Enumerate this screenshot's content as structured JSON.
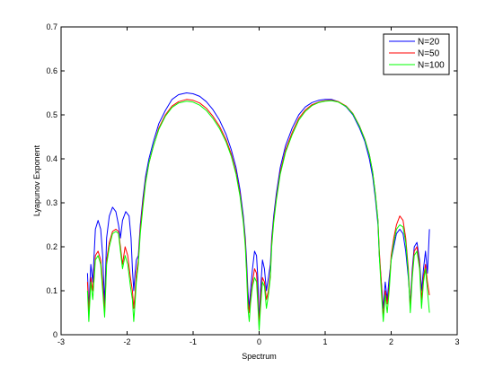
{
  "chart_data": {
    "type": "line",
    "title": "",
    "xlabel": "Spectrum",
    "ylabel": "Lyapunov Exponent",
    "xlim": [
      -3,
      3
    ],
    "ylim": [
      0,
      0.7
    ],
    "xticks": [
      "-3",
      "-2",
      "-1",
      "0",
      "1",
      "2",
      "3"
    ],
    "yticks": [
      "0",
      "0.1",
      "0.2",
      "0.3",
      "0.4",
      "0.5",
      "0.6",
      "0.7"
    ],
    "grid": false,
    "legend_position": "top-right",
    "series": [
      {
        "name": "N=20",
        "color": "#0000ff",
        "points": [
          [
            -2.6,
            0.14
          ],
          [
            -2.58,
            0.06
          ],
          [
            -2.55,
            0.16
          ],
          [
            -2.52,
            0.12
          ],
          [
            -2.48,
            0.24
          ],
          [
            -2.44,
            0.26
          ],
          [
            -2.4,
            0.24
          ],
          [
            -2.37,
            0.18
          ],
          [
            -2.34,
            0.07
          ],
          [
            -2.31,
            0.22
          ],
          [
            -2.27,
            0.27
          ],
          [
            -2.22,
            0.29
          ],
          [
            -2.17,
            0.28
          ],
          [
            -2.13,
            0.25
          ],
          [
            -2.1,
            0.22
          ],
          [
            -2.07,
            0.26
          ],
          [
            -2.02,
            0.28
          ],
          [
            -1.97,
            0.27
          ],
          [
            -1.94,
            0.22
          ],
          [
            -1.92,
            0.15
          ],
          [
            -1.9,
            0.1
          ],
          [
            -1.88,
            0.14
          ],
          [
            -1.86,
            0.17
          ],
          [
            -1.83,
            0.18
          ],
          [
            -1.8,
            0.25
          ],
          [
            -1.76,
            0.31
          ],
          [
            -1.72,
            0.36
          ],
          [
            -1.67,
            0.4
          ],
          [
            -1.6,
            0.44
          ],
          [
            -1.52,
            0.48
          ],
          [
            -1.42,
            0.51
          ],
          [
            -1.32,
            0.535
          ],
          [
            -1.22,
            0.546
          ],
          [
            -1.1,
            0.55
          ],
          [
            -1.0,
            0.548
          ],
          [
            -0.9,
            0.542
          ],
          [
            -0.8,
            0.53
          ],
          [
            -0.7,
            0.512
          ],
          [
            -0.6,
            0.488
          ],
          [
            -0.5,
            0.455
          ],
          [
            -0.42,
            0.42
          ],
          [
            -0.35,
            0.38
          ],
          [
            -0.29,
            0.33
          ],
          [
            -0.24,
            0.27
          ],
          [
            -0.21,
            0.22
          ],
          [
            -0.19,
            0.17
          ],
          [
            -0.17,
            0.1
          ],
          [
            -0.15,
            0.06
          ],
          [
            -0.13,
            0.1
          ],
          [
            -0.1,
            0.15
          ],
          [
            -0.07,
            0.19
          ],
          [
            -0.04,
            0.18
          ],
          [
            -0.02,
            0.13
          ],
          [
            0.0,
            0.03
          ],
          [
            0.02,
            0.1
          ],
          [
            0.05,
            0.17
          ],
          [
            0.08,
            0.15
          ],
          [
            0.11,
            0.1
          ],
          [
            0.14,
            0.13
          ],
          [
            0.17,
            0.16
          ],
          [
            0.19,
            0.22
          ],
          [
            0.22,
            0.27
          ],
          [
            0.26,
            0.32
          ],
          [
            0.32,
            0.38
          ],
          [
            0.4,
            0.43
          ],
          [
            0.5,
            0.47
          ],
          [
            0.6,
            0.5
          ],
          [
            0.7,
            0.518
          ],
          [
            0.8,
            0.528
          ],
          [
            0.9,
            0.533
          ],
          [
            1.0,
            0.535
          ],
          [
            1.1,
            0.535
          ],
          [
            1.2,
            0.53
          ],
          [
            1.32,
            0.518
          ],
          [
            1.42,
            0.5
          ],
          [
            1.52,
            0.47
          ],
          [
            1.6,
            0.44
          ],
          [
            1.67,
            0.4
          ],
          [
            1.72,
            0.36
          ],
          [
            1.76,
            0.31
          ],
          [
            1.8,
            0.25
          ],
          [
            1.82,
            0.18
          ],
          [
            1.85,
            0.12
          ],
          [
            1.88,
            0.06
          ],
          [
            1.91,
            0.12
          ],
          [
            1.94,
            0.08
          ],
          [
            1.97,
            0.13
          ],
          [
            2.0,
            0.17
          ],
          [
            2.04,
            0.2
          ],
          [
            2.08,
            0.23
          ],
          [
            2.13,
            0.24
          ],
          [
            2.18,
            0.23
          ],
          [
            2.22,
            0.19
          ],
          [
            2.26,
            0.13
          ],
          [
            2.29,
            0.07
          ],
          [
            2.32,
            0.15
          ],
          [
            2.35,
            0.2
          ],
          [
            2.39,
            0.21
          ],
          [
            2.43,
            0.17
          ],
          [
            2.46,
            0.1
          ],
          [
            2.49,
            0.15
          ],
          [
            2.52,
            0.19
          ],
          [
            2.55,
            0.14
          ],
          [
            2.58,
            0.24
          ]
        ]
      },
      {
        "name": "N=50",
        "color": "#ff0000",
        "points": [
          [
            -2.6,
            0.12
          ],
          [
            -2.58,
            0.05
          ],
          [
            -2.55,
            0.13
          ],
          [
            -2.52,
            0.1
          ],
          [
            -2.48,
            0.18
          ],
          [
            -2.44,
            0.19
          ],
          [
            -2.4,
            0.17
          ],
          [
            -2.37,
            0.12
          ],
          [
            -2.34,
            0.05
          ],
          [
            -2.31,
            0.17
          ],
          [
            -2.27,
            0.21
          ],
          [
            -2.22,
            0.235
          ],
          [
            -2.17,
            0.24
          ],
          [
            -2.13,
            0.235
          ],
          [
            -2.1,
            0.2
          ],
          [
            -2.07,
            0.16
          ],
          [
            -2.03,
            0.2
          ],
          [
            -1.99,
            0.18
          ],
          [
            -1.95,
            0.13
          ],
          [
            -1.92,
            0.1
          ],
          [
            -1.9,
            0.06
          ],
          [
            -1.88,
            0.09
          ],
          [
            -1.86,
            0.14
          ],
          [
            -1.83,
            0.17
          ],
          [
            -1.8,
            0.24
          ],
          [
            -1.76,
            0.3
          ],
          [
            -1.72,
            0.35
          ],
          [
            -1.67,
            0.39
          ],
          [
            -1.6,
            0.43
          ],
          [
            -1.52,
            0.47
          ],
          [
            -1.42,
            0.5
          ],
          [
            -1.32,
            0.52
          ],
          [
            -1.22,
            0.53
          ],
          [
            -1.1,
            0.535
          ],
          [
            -1.0,
            0.533
          ],
          [
            -0.9,
            0.527
          ],
          [
            -0.8,
            0.515
          ],
          [
            -0.7,
            0.497
          ],
          [
            -0.6,
            0.474
          ],
          [
            -0.5,
            0.443
          ],
          [
            -0.42,
            0.41
          ],
          [
            -0.35,
            0.37
          ],
          [
            -0.29,
            0.32
          ],
          [
            -0.24,
            0.26
          ],
          [
            -0.21,
            0.21
          ],
          [
            -0.19,
            0.15
          ],
          [
            -0.17,
            0.08
          ],
          [
            -0.15,
            0.05
          ],
          [
            -0.13,
            0.08
          ],
          [
            -0.1,
            0.12
          ],
          [
            -0.07,
            0.15
          ],
          [
            -0.04,
            0.14
          ],
          [
            -0.02,
            0.09
          ],
          [
            0.0,
            0.02
          ],
          [
            0.02,
            0.08
          ],
          [
            0.05,
            0.13
          ],
          [
            0.08,
            0.12
          ],
          [
            0.11,
            0.08
          ],
          [
            0.14,
            0.1
          ],
          [
            0.17,
            0.14
          ],
          [
            0.19,
            0.21
          ],
          [
            0.22,
            0.26
          ],
          [
            0.26,
            0.31
          ],
          [
            0.32,
            0.37
          ],
          [
            0.4,
            0.42
          ],
          [
            0.5,
            0.46
          ],
          [
            0.6,
            0.492
          ],
          [
            0.7,
            0.511
          ],
          [
            0.8,
            0.523
          ],
          [
            0.9,
            0.529
          ],
          [
            1.0,
            0.532
          ],
          [
            1.1,
            0.533
          ],
          [
            1.2,
            0.53
          ],
          [
            1.32,
            0.52
          ],
          [
            1.42,
            0.503
          ],
          [
            1.52,
            0.475
          ],
          [
            1.6,
            0.445
          ],
          [
            1.67,
            0.41
          ],
          [
            1.72,
            0.37
          ],
          [
            1.76,
            0.32
          ],
          [
            1.8,
            0.26
          ],
          [
            1.82,
            0.19
          ],
          [
            1.85,
            0.12
          ],
          [
            1.88,
            0.04
          ],
          [
            1.91,
            0.1
          ],
          [
            1.94,
            0.07
          ],
          [
            1.97,
            0.11
          ],
          [
            2.0,
            0.18
          ],
          [
            2.04,
            0.22
          ],
          [
            2.08,
            0.25
          ],
          [
            2.13,
            0.27
          ],
          [
            2.18,
            0.26
          ],
          [
            2.22,
            0.22
          ],
          [
            2.26,
            0.15
          ],
          [
            2.29,
            0.06
          ],
          [
            2.32,
            0.14
          ],
          [
            2.35,
            0.19
          ],
          [
            2.39,
            0.2
          ],
          [
            2.43,
            0.16
          ],
          [
            2.46,
            0.08
          ],
          [
            2.49,
            0.13
          ],
          [
            2.52,
            0.16
          ],
          [
            2.55,
            0.12
          ],
          [
            2.58,
            0.09
          ]
        ]
      },
      {
        "name": "N=100",
        "color": "#00ff00",
        "points": [
          [
            -2.6,
            0.1
          ],
          [
            -2.58,
            0.03
          ],
          [
            -2.55,
            0.12
          ],
          [
            -2.52,
            0.08
          ],
          [
            -2.48,
            0.17
          ],
          [
            -2.44,
            0.18
          ],
          [
            -2.4,
            0.16
          ],
          [
            -2.37,
            0.1
          ],
          [
            -2.34,
            0.04
          ],
          [
            -2.31,
            0.16
          ],
          [
            -2.27,
            0.2
          ],
          [
            -2.22,
            0.23
          ],
          [
            -2.17,
            0.235
          ],
          [
            -2.13,
            0.23
          ],
          [
            -2.1,
            0.19
          ],
          [
            -2.07,
            0.15
          ],
          [
            -2.03,
            0.18
          ],
          [
            -1.99,
            0.16
          ],
          [
            -1.95,
            0.11
          ],
          [
            -1.92,
            0.08
          ],
          [
            -1.9,
            0.03
          ],
          [
            -1.88,
            0.07
          ],
          [
            -1.86,
            0.12
          ],
          [
            -1.83,
            0.16
          ],
          [
            -1.8,
            0.23
          ],
          [
            -1.76,
            0.29
          ],
          [
            -1.72,
            0.345
          ],
          [
            -1.67,
            0.39
          ],
          [
            -1.6,
            0.43
          ],
          [
            -1.52,
            0.467
          ],
          [
            -1.42,
            0.497
          ],
          [
            -1.32,
            0.517
          ],
          [
            -1.22,
            0.527
          ],
          [
            -1.1,
            0.531
          ],
          [
            -1.0,
            0.529
          ],
          [
            -0.9,
            0.522
          ],
          [
            -0.8,
            0.51
          ],
          [
            -0.7,
            0.492
          ],
          [
            -0.6,
            0.469
          ],
          [
            -0.5,
            0.438
          ],
          [
            -0.42,
            0.405
          ],
          [
            -0.35,
            0.365
          ],
          [
            -0.29,
            0.315
          ],
          [
            -0.24,
            0.255
          ],
          [
            -0.21,
            0.2
          ],
          [
            -0.19,
            0.14
          ],
          [
            -0.17,
            0.06
          ],
          [
            -0.15,
            0.03
          ],
          [
            -0.13,
            0.07
          ],
          [
            -0.1,
            0.11
          ],
          [
            -0.07,
            0.13
          ],
          [
            -0.04,
            0.12
          ],
          [
            -0.02,
            0.07
          ],
          [
            0.0,
            0.01
          ],
          [
            0.02,
            0.06
          ],
          [
            0.05,
            0.12
          ],
          [
            0.08,
            0.11
          ],
          [
            0.11,
            0.06
          ],
          [
            0.14,
            0.09
          ],
          [
            0.17,
            0.13
          ],
          [
            0.19,
            0.2
          ],
          [
            0.22,
            0.255
          ],
          [
            0.26,
            0.305
          ],
          [
            0.32,
            0.365
          ],
          [
            0.4,
            0.415
          ],
          [
            0.5,
            0.455
          ],
          [
            0.6,
            0.488
          ],
          [
            0.7,
            0.508
          ],
          [
            0.8,
            0.521
          ],
          [
            0.9,
            0.528
          ],
          [
            1.0,
            0.531
          ],
          [
            1.1,
            0.532
          ],
          [
            1.2,
            0.529
          ],
          [
            1.32,
            0.519
          ],
          [
            1.42,
            0.502
          ],
          [
            1.52,
            0.474
          ],
          [
            1.6,
            0.444
          ],
          [
            1.67,
            0.41
          ],
          [
            1.72,
            0.37
          ],
          [
            1.76,
            0.32
          ],
          [
            1.8,
            0.26
          ],
          [
            1.82,
            0.18
          ],
          [
            1.85,
            0.1
          ],
          [
            1.88,
            0.03
          ],
          [
            1.91,
            0.09
          ],
          [
            1.94,
            0.05
          ],
          [
            1.97,
            0.1
          ],
          [
            2.0,
            0.17
          ],
          [
            2.04,
            0.21
          ],
          [
            2.08,
            0.24
          ],
          [
            2.13,
            0.25
          ],
          [
            2.18,
            0.245
          ],
          [
            2.22,
            0.21
          ],
          [
            2.26,
            0.14
          ],
          [
            2.29,
            0.05
          ],
          [
            2.32,
            0.13
          ],
          [
            2.35,
            0.18
          ],
          [
            2.39,
            0.19
          ],
          [
            2.43,
            0.15
          ],
          [
            2.46,
            0.06
          ],
          [
            2.49,
            0.12
          ],
          [
            2.52,
            0.15
          ],
          [
            2.55,
            0.1
          ],
          [
            2.58,
            0.05
          ]
        ]
      }
    ]
  }
}
